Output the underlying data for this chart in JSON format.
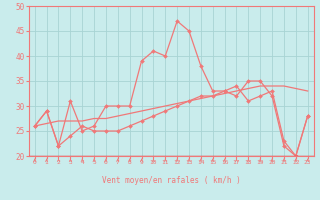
{
  "xlabel": "Vent moyen/en rafales ( km/h )",
  "xlim": [
    -0.5,
    23.5
  ],
  "ylim": [
    20,
    50
  ],
  "yticks": [
    20,
    25,
    30,
    35,
    40,
    45,
    50
  ],
  "xticks": [
    0,
    1,
    2,
    3,
    4,
    5,
    6,
    7,
    8,
    9,
    10,
    11,
    12,
    13,
    14,
    15,
    16,
    17,
    18,
    19,
    20,
    21,
    22,
    23
  ],
  "background_color": "#c9ecec",
  "grid_color": "#a8d4d4",
  "line_color": "#f07878",
  "line_spiky": [
    26,
    29,
    22,
    31,
    25,
    26,
    30,
    30,
    30,
    39,
    41,
    40,
    47,
    45,
    38,
    33,
    33,
    32,
    35,
    35,
    32,
    22,
    20,
    28
  ],
  "line_flat": [
    26,
    29,
    22,
    24,
    26,
    25,
    25,
    25,
    26,
    27,
    28,
    29,
    30,
    31,
    32,
    32,
    33,
    34,
    31,
    32,
    33,
    23,
    20,
    28
  ],
  "line_trend": [
    26,
    26.5,
    27,
    27,
    27,
    27.5,
    27.5,
    28,
    28.5,
    29,
    29.5,
    30,
    30.5,
    31,
    31.5,
    32,
    32.5,
    33,
    33.5,
    34,
    34,
    34,
    33.5,
    33
  ],
  "marker_size": 2.0,
  "line_width": 0.9
}
